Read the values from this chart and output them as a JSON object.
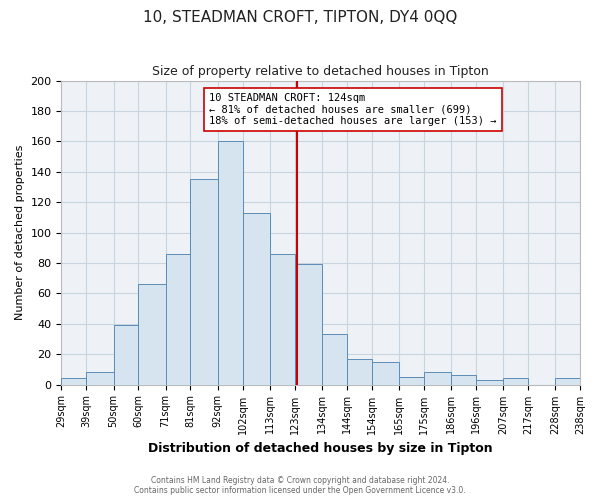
{
  "title": "10, STEADMAN CROFT, TIPTON, DY4 0QQ",
  "subtitle": "Size of property relative to detached houses in Tipton",
  "xlabel": "Distribution of detached houses by size in Tipton",
  "ylabel": "Number of detached properties",
  "bin_labels": [
    "29sqm",
    "39sqm",
    "50sqm",
    "60sqm",
    "71sqm",
    "81sqm",
    "92sqm",
    "102sqm",
    "113sqm",
    "123sqm",
    "134sqm",
    "144sqm",
    "154sqm",
    "165sqm",
    "175sqm",
    "186sqm",
    "196sqm",
    "207sqm",
    "217sqm",
    "228sqm",
    "238sqm"
  ],
  "bin_edges": [
    29,
    39,
    50,
    60,
    71,
    81,
    92,
    102,
    113,
    123,
    134,
    144,
    154,
    165,
    175,
    186,
    196,
    207,
    217,
    228,
    238
  ],
  "bar_heights": [
    4,
    8,
    39,
    66,
    86,
    135,
    160,
    113,
    86,
    79,
    33,
    17,
    15,
    5,
    8,
    6,
    3,
    4,
    0,
    4
  ],
  "bar_color": "#d6e4f0",
  "bar_edge_color": "#5b8db8",
  "vline_x": 124,
  "vline_color": "#cc0000",
  "annotation_title": "10 STEADMAN CROFT: 124sqm",
  "annotation_line1": "← 81% of detached houses are smaller (699)",
  "annotation_line2": "18% of semi-detached houses are larger (153) →",
  "annotation_box_facecolor": "#ffffff",
  "annotation_box_edgecolor": "#cc0000",
  "grid_color": "#c8d4e0",
  "background_color": "#ffffff",
  "axes_background": "#eef2f7",
  "footer1": "Contains HM Land Registry data © Crown copyright and database right 2024.",
  "footer2": "Contains public sector information licensed under the Open Government Licence v3.0.",
  "ylim": [
    0,
    200
  ],
  "yticks": [
    0,
    20,
    40,
    60,
    80,
    100,
    120,
    140,
    160,
    180,
    200
  ]
}
